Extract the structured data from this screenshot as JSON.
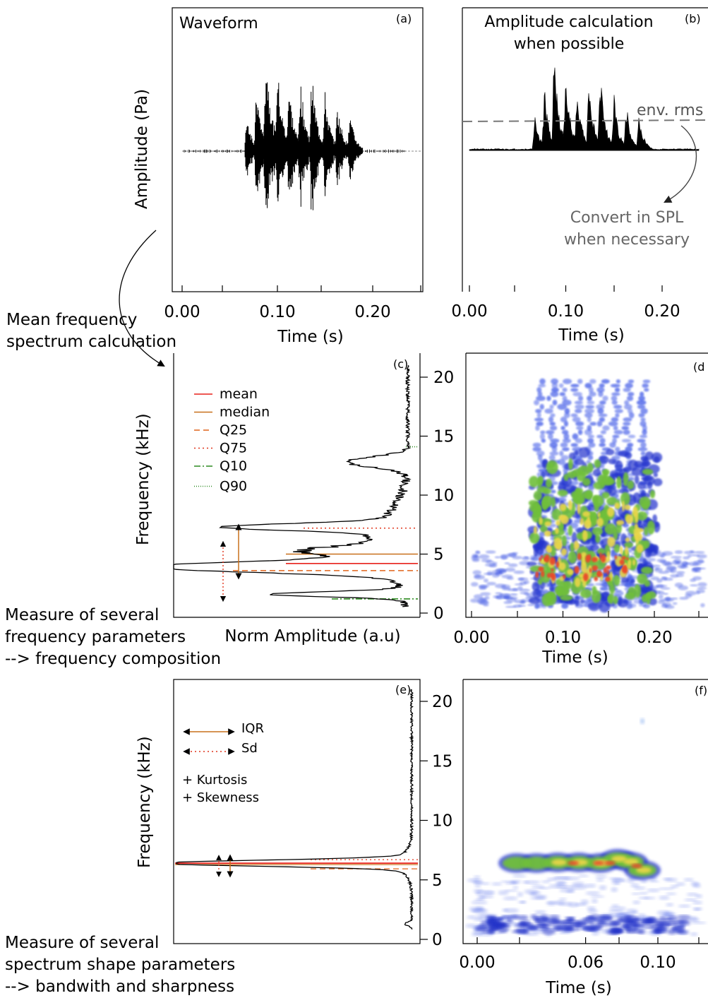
{
  "notes": {
    "mean_spectrum": [
      "Mean frequency",
      "spectrum calculation"
    ],
    "freq_params": [
      "Measure of several",
      "frequency parameters",
      "--> frequency composition"
    ],
    "shape_params": [
      "Measure of several",
      "spectrum shape parameters",
      "--> bandwith and sharpness"
    ]
  },
  "chart_data": [
    {
      "panel": "(a)",
      "type": "line",
      "title": "Waveform",
      "xlabel": "Time (s)",
      "ylabel": "Amplitude (Pa)",
      "xlim": [
        -0.01,
        0.24
      ],
      "xticks": [
        "0.00",
        "0.10",
        "0.20"
      ],
      "x_tick_values": [
        0.0,
        0.1,
        0.2
      ],
      "burst_times": [
        0.068,
        0.078,
        0.088,
        0.1,
        0.112,
        0.124,
        0.136,
        0.15,
        0.163,
        0.176
      ],
      "burst_amplitudes": [
        0.35,
        0.6,
        1.0,
        0.8,
        0.65,
        0.7,
        0.75,
        0.55,
        0.45,
        0.35
      ]
    },
    {
      "panel": "(b)",
      "type": "area",
      "title": "Amplitude calculation\nwhen possible",
      "xlabel": "Time (s)",
      "xticks": [
        "0.00",
        "0.10",
        "0.20"
      ],
      "x_tick_values": [
        0.0,
        0.1,
        0.2
      ],
      "annotations": [
        "env. rms",
        "Convert in SPL",
        "when necessary"
      ]
    },
    {
      "panel": "(c)",
      "type": "line",
      "xlabel": "Norm Amplitude (a.u)",
      "ylabel": "Frequency (kHz)",
      "ylim": [
        0,
        21
      ],
      "yticks": [
        "0",
        "5",
        "10",
        "15",
        "20"
      ],
      "legend": [
        {
          "label": "mean",
          "color": "#e8221b",
          "style": "solid"
        },
        {
          "label": "median",
          "color": "#c8701c",
          "style": "solid"
        },
        {
          "label": "Q25",
          "color": "#e0641b",
          "style": "dashed"
        },
        {
          "label": "Q75",
          "color": "#e0341b",
          "style": "dotted"
        },
        {
          "label": "Q10",
          "color": "#2e8b22",
          "style": "dashdot"
        },
        {
          "label": "Q90",
          "color": "#2e8b22",
          "style": "densely-dotted"
        }
      ],
      "markers_khz": {
        "mean": 4.2,
        "median": 5.0,
        "Q25": 3.6,
        "Q75": 7.2,
        "Q10": 1.2,
        "Q90": 14.1
      },
      "spectrum_peak_khz": 3.9
    },
    {
      "panel": "(d)",
      "type": "heatmap",
      "xlabel": "Time (s)",
      "xticks": [
        "0.00",
        "0.10",
        "0.20"
      ],
      "x_tick_values": [
        0.0,
        0.1,
        0.2
      ],
      "ylim": [
        0,
        21
      ]
    },
    {
      "panel": "(e)",
      "type": "line",
      "ylabel": "Frequency (kHz)",
      "ylim": [
        0,
        21
      ],
      "yticks": [
        "0",
        "5",
        "10",
        "15",
        "20"
      ],
      "legend": [
        {
          "label": "IQR",
          "color": "#c8701c",
          "style": "double-arrow"
        },
        {
          "label": "Sd",
          "color": "#e0341b",
          "style": "dotted-double-arrow"
        }
      ],
      "extra_text": [
        "+ Kurtosis",
        "+ Skewness"
      ],
      "spectrum_peak_khz": 6.4
    },
    {
      "panel": "(f)",
      "type": "heatmap",
      "xlabel": "Time (s)",
      "xticks": [
        "0.00",
        "0.06",
        "0.10"
      ],
      "x_tick_values": [
        0.0,
        0.06,
        0.1
      ]
    }
  ]
}
